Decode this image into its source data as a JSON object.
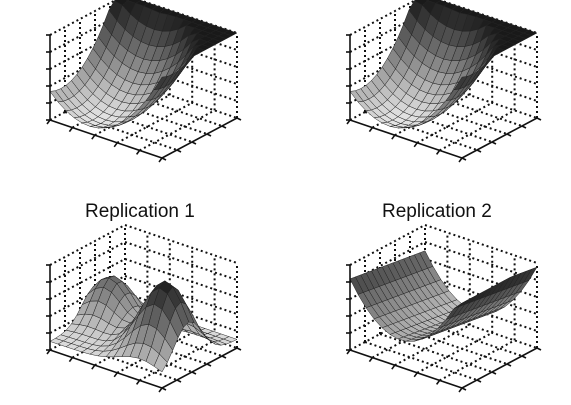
{
  "chart_data": [
    {
      "type": "surface",
      "shape": "bowl",
      "title": "",
      "xlabel": "",
      "ylabel": "",
      "zlabel": "",
      "grid": true
    },
    {
      "type": "surface",
      "shape": "bowl",
      "title": "",
      "xlabel": "",
      "ylabel": "",
      "zlabel": "",
      "grid": true
    },
    {
      "type": "surface",
      "shape": "twin-hump",
      "title": "",
      "xlabel": "",
      "ylabel": "",
      "zlabel": "",
      "grid": true
    },
    {
      "type": "surface",
      "shape": "saddle",
      "title": "",
      "xlabel": "",
      "ylabel": "",
      "zlabel": "",
      "grid": true
    }
  ],
  "captions": {
    "left": "Replication 1",
    "right": "Replication 2"
  }
}
